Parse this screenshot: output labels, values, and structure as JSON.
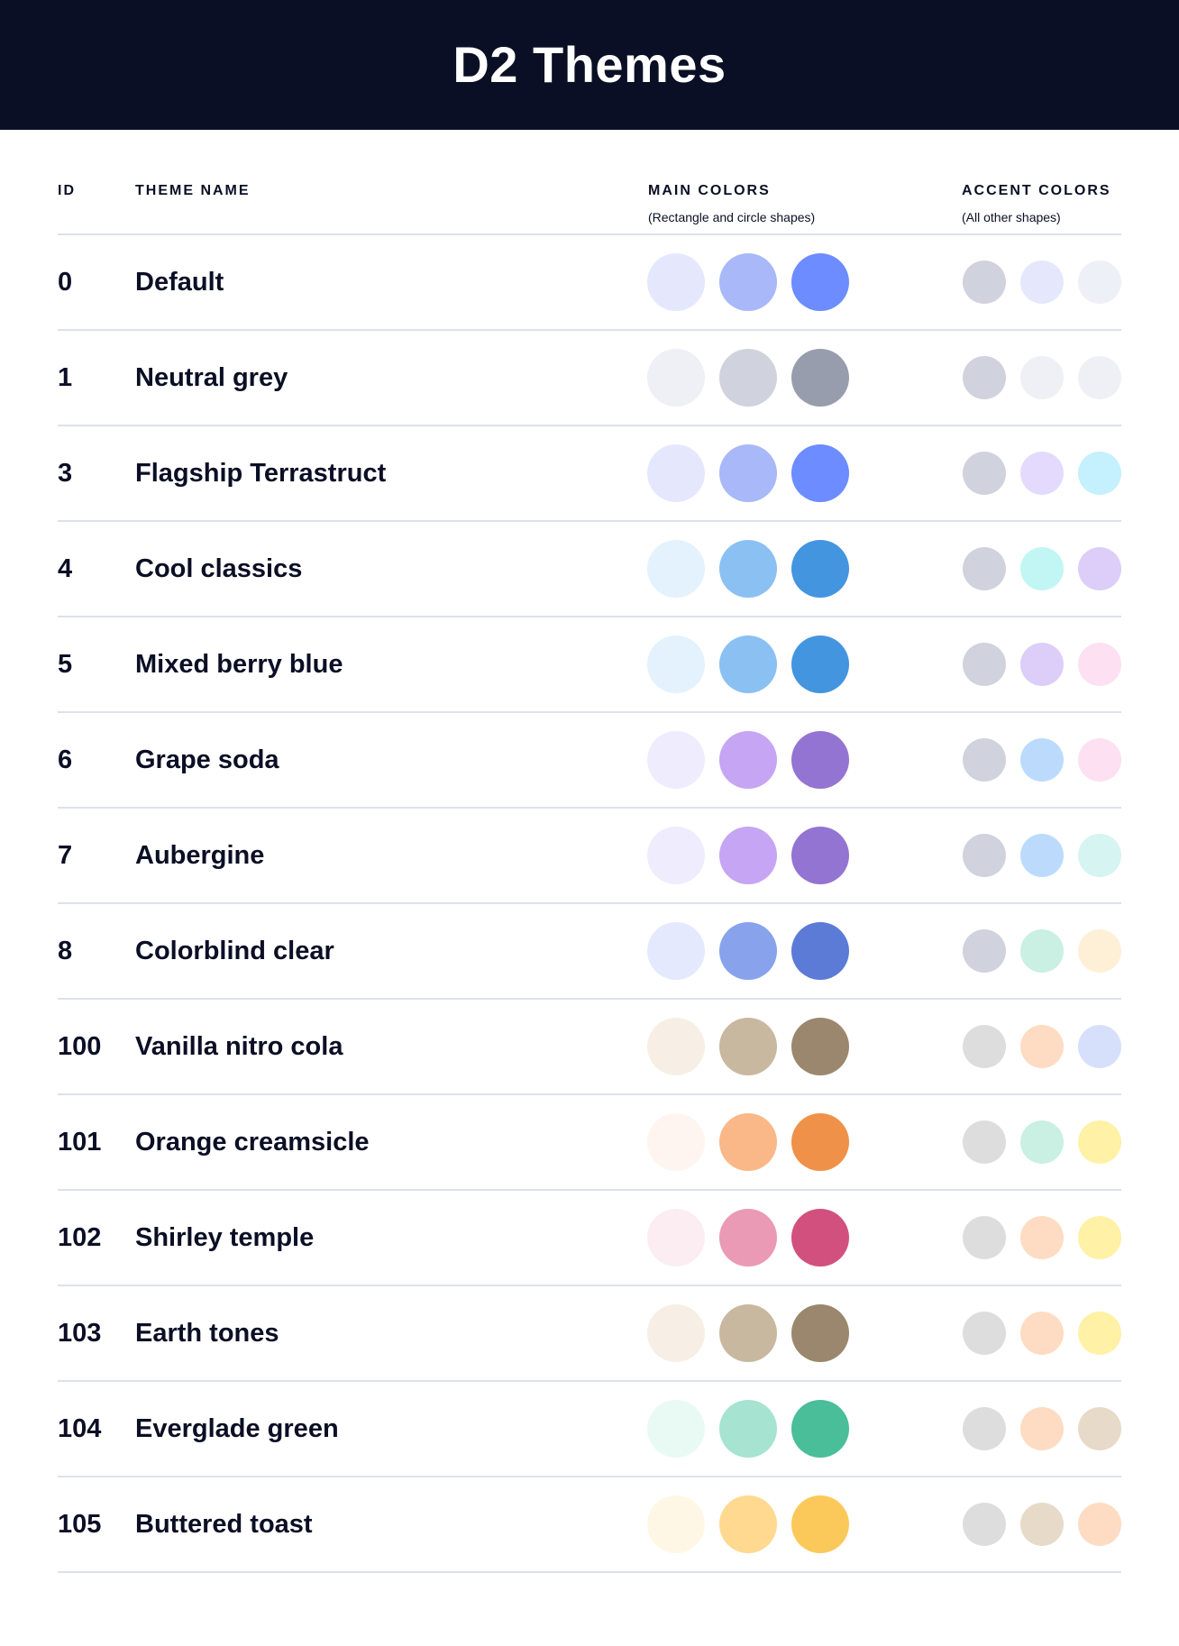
{
  "title": "D2 Themes",
  "columns": {
    "id": "ID",
    "name": "THEME NAME",
    "main": "MAIN COLORS",
    "main_sub": "(Rectangle and circle shapes)",
    "accent": "ACCENT COLORS",
    "accent_sub": "(All other shapes)"
  },
  "themes": [
    {
      "id": "0",
      "name": "Default",
      "main": [
        "#E5E8FD",
        "#A8B8F8",
        "#6C8CFF"
      ],
      "accent": [
        "#D0D2DE",
        "#E5E8FD",
        "#EEF0F7"
      ]
    },
    {
      "id": "1",
      "name": "Neutral grey",
      "main": [
        "#EEF0F5",
        "#D0D2DE",
        "#979DAD"
      ],
      "accent": [
        "#D0D2DE",
        "#EEF0F5",
        "#EEF0F5"
      ]
    },
    {
      "id": "3",
      "name": "Flagship Terrastruct",
      "main": [
        "#E5E8FD",
        "#A8B8F8",
        "#6C8CFF"
      ],
      "accent": [
        "#D0D2DE",
        "#E4DAFD",
        "#C5F0FD"
      ]
    },
    {
      "id": "4",
      "name": "Cool classics",
      "main": [
        "#E3F2FD",
        "#8BC0F3",
        "#4495DF"
      ],
      "accent": [
        "#D0D2DE",
        "#C1F6F5",
        "#DCCEF8"
      ]
    },
    {
      "id": "5",
      "name": "Mixed berry blue",
      "main": [
        "#E3F2FD",
        "#8BC0F3",
        "#4495DF"
      ],
      "accent": [
        "#D0D2DE",
        "#DCCEF8",
        "#FDE0F2"
      ]
    },
    {
      "id": "6",
      "name": "Grape soda",
      "main": [
        "#EFECFE",
        "#C5A5F4",
        "#9474D2"
      ],
      "accent": [
        "#D0D2DE",
        "#BCDBFC",
        "#FDE0F2"
      ]
    },
    {
      "id": "7",
      "name": "Aubergine",
      "main": [
        "#EFECFE",
        "#C5A5F4",
        "#9474D2"
      ],
      "accent": [
        "#D0D2DE",
        "#BCDBFC",
        "#D5F4F2"
      ]
    },
    {
      "id": "8",
      "name": "Colorblind clear",
      "main": [
        "#E5E9FD",
        "#88A3EC",
        "#5B7BD6"
      ],
      "accent": [
        "#D0D2DE",
        "#C9F0E3",
        "#FEF0D7"
      ]
    },
    {
      "id": "100",
      "name": "Vanilla nitro cola",
      "main": [
        "#F7EFE5",
        "#C9B8A0",
        "#9B876D"
      ],
      "accent": [
        "#DDDDDD",
        "#FDDCC3",
        "#D7E0FB"
      ]
    },
    {
      "id": "101",
      "name": "Orange creamsicle",
      "main": [
        "#FFF5F0",
        "#FAB888",
        "#F0914A"
      ],
      "accent": [
        "#DDDDDD",
        "#C9F0E3",
        "#FFF1A5"
      ]
    },
    {
      "id": "102",
      "name": "Shirley temple",
      "main": [
        "#FCEDF2",
        "#EA9AB5",
        "#D2507E"
      ],
      "accent": [
        "#DDDDDD",
        "#FDDCC3",
        "#FFF1A5"
      ]
    },
    {
      "id": "103",
      "name": "Earth tones",
      "main": [
        "#F7EFE5",
        "#C9B8A0",
        "#9B876D"
      ],
      "accent": [
        "#DDDDDD",
        "#FDDCC3",
        "#FFF1A5"
      ]
    },
    {
      "id": "104",
      "name": "Everglade green",
      "main": [
        "#E8FAF3",
        "#A6E3D0",
        "#4ABD99"
      ],
      "accent": [
        "#DDDDDD",
        "#FDDCC3",
        "#E7DAC8"
      ]
    },
    {
      "id": "105",
      "name": "Buttered toast",
      "main": [
        "#FFF7E6",
        "#FFD98F",
        "#FBC85A"
      ],
      "accent": [
        "#DDDDDD",
        "#E7DAC8",
        "#FDDCC3"
      ]
    }
  ]
}
